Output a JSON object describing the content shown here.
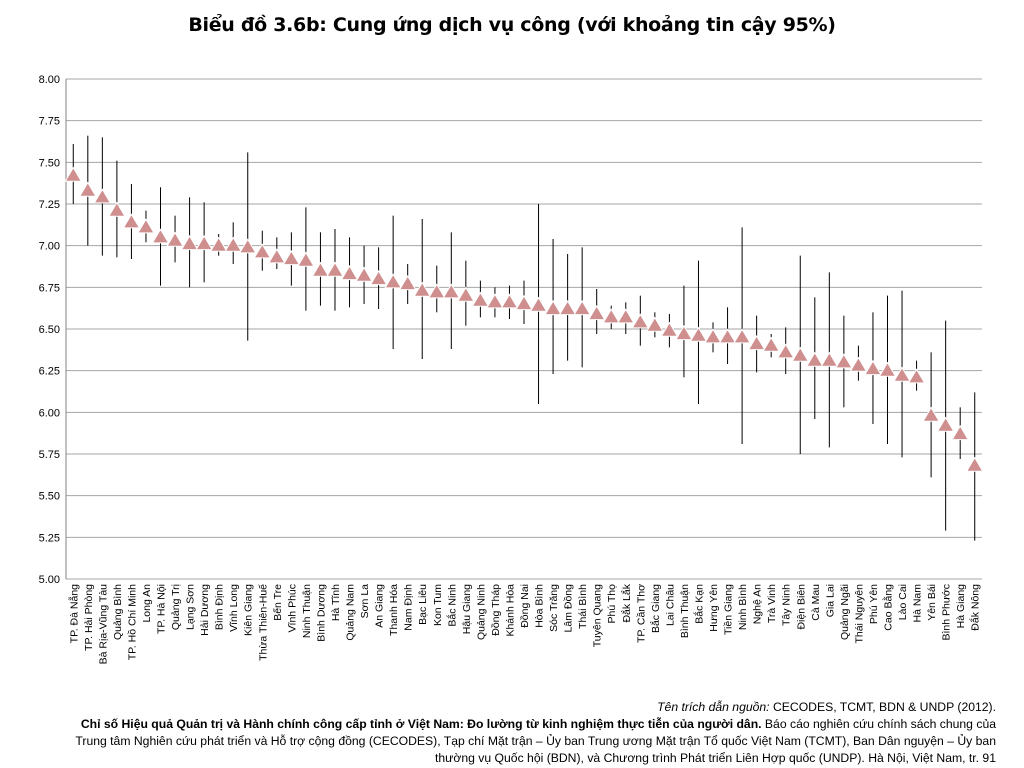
{
  "chart_data": {
    "type": "scatter",
    "title": "Biểu đồ 3.6b: Cung ứng dịch vụ công (với khoảng tin cậy 95%)",
    "xlabel": "",
    "ylabel": "",
    "ylim": [
      5.0,
      8.0
    ],
    "yticks": [
      "5.00",
      "5.25",
      "5.50",
      "5.75",
      "6.00",
      "6.25",
      "6.50",
      "6.75",
      "7.00",
      "7.25",
      "7.50",
      "7.75",
      "8.00"
    ],
    "grid": true,
    "marker": "triangle",
    "colors": {
      "marker": "#cf8f8f",
      "grid": "#a6a6a6",
      "error_bar": "#000000"
    },
    "categories": [
      "TP. Đà Nẵng",
      "TP. Hải Phòng",
      "Bà Rịa-Vũng Tàu",
      "Quảng Bình",
      "TP. Hồ Chí Minh",
      "Long An",
      "TP. Hà Nội",
      "Quảng Trị",
      "Lạng Sơn",
      "Hải Dương",
      "Bình Định",
      "Vĩnh Long",
      "Kiên Giang",
      "Thừa Thiên-Huế",
      "Bến Tre",
      "Vĩnh Phúc",
      "Ninh Thuận",
      "Bình Dương",
      "Hà Tĩnh",
      "Quảng Nam",
      "Sơn La",
      "An Giang",
      "Thanh Hóa",
      "Nam Định",
      "Bạc Liêu",
      "Kon Tum",
      "Bắc Ninh",
      "Hậu Giang",
      "Quảng Ninh",
      "Đồng Tháp",
      "Khánh Hòa",
      "Đồng Nai",
      "Hòa Bình",
      "Sóc Trăng",
      "Lâm Đồng",
      "Thái Bình",
      "Tuyên Quang",
      "Phú Thọ",
      "Đắk Lắk",
      "TP. Cần Thơ",
      "Bắc Giang",
      "Lai Châu",
      "Bình Thuận",
      "Bắc Kạn",
      "Hưng Yên",
      "Tiền Giang",
      "Ninh Bình",
      "Nghệ An",
      "Trà Vinh",
      "Tây Ninh",
      "Điện Biên",
      "Cà Mau",
      "Gia Lai",
      "Quảng Ngãi",
      "Thái Nguyên",
      "Phú Yên",
      "Cao Bằng",
      "Lào Cai",
      "Hà Nam",
      "Yên Bái",
      "Bình Phước",
      "Hà Giang",
      "Đắk Nông"
    ],
    "values": [
      7.42,
      7.33,
      7.29,
      7.21,
      7.14,
      7.11,
      7.05,
      7.03,
      7.01,
      7.01,
      7.0,
      7.0,
      6.99,
      6.96,
      6.93,
      6.92,
      6.91,
      6.85,
      6.85,
      6.83,
      6.82,
      6.8,
      6.78,
      6.77,
      6.73,
      6.72,
      6.72,
      6.7,
      6.67,
      6.66,
      6.66,
      6.65,
      6.64,
      6.62,
      6.62,
      6.62,
      6.59,
      6.57,
      6.57,
      6.54,
      6.52,
      6.49,
      6.47,
      6.46,
      6.45,
      6.45,
      6.45,
      6.41,
      6.4,
      6.36,
      6.34,
      6.31,
      6.31,
      6.3,
      6.28,
      6.26,
      6.25,
      6.22,
      6.21,
      5.98,
      5.92,
      5.87,
      5.68
    ],
    "ci_low": [
      7.25,
      7.0,
      6.94,
      6.93,
      6.92,
      7.02,
      6.76,
      6.9,
      6.75,
      6.78,
      6.94,
      6.89,
      6.43,
      6.85,
      6.86,
      6.76,
      6.61,
      6.64,
      6.61,
      6.63,
      6.65,
      6.62,
      6.38,
      6.65,
      6.32,
      6.6,
      6.38,
      6.52,
      6.57,
      6.57,
      6.56,
      6.53,
      6.05,
      6.23,
      6.31,
      6.27,
      6.47,
      6.5,
      6.47,
      6.4,
      6.45,
      6.39,
      6.21,
      6.05,
      6.36,
      6.29,
      5.81,
      6.24,
      6.33,
      6.23,
      5.75,
      5.96,
      5.79,
      6.03,
      6.19,
      5.93,
      5.81,
      5.73,
      6.13,
      5.61,
      5.29,
      5.72,
      5.23
    ],
    "ci_high": [
      7.61,
      7.66,
      7.65,
      7.51,
      7.37,
      7.21,
      7.35,
      7.18,
      7.29,
      7.26,
      7.07,
      7.14,
      7.56,
      7.09,
      7.05,
      7.08,
      7.23,
      7.08,
      7.1,
      7.05,
      7.0,
      6.99,
      7.18,
      6.89,
      7.16,
      6.88,
      7.08,
      6.91,
      6.79,
      6.75,
      6.76,
      6.79,
      7.25,
      7.04,
      6.95,
      6.99,
      6.74,
      6.64,
      6.66,
      6.7,
      6.6,
      6.59,
      6.76,
      6.91,
      6.54,
      6.63,
      7.11,
      6.58,
      6.47,
      6.51,
      6.94,
      6.69,
      6.84,
      6.58,
      6.4,
      6.6,
      6.7,
      6.73,
      6.31,
      6.36,
      6.55,
      6.03,
      6.12
    ]
  },
  "source": {
    "prefix": "Tên trích dẫn nguồn:",
    "authors": " CECODES, TCMT, BDN & UNDP (2012).",
    "title_bold": "Chỉ số Hiệu quả Quản trị và Hành chính công cấp tỉnh ở Việt Nam: Đo lường từ kinh nghiệm thực tiễn của người dân.",
    "line2_rest": " Báo cáo nghiên cứu chính sách chung của",
    "line3": "Trung tâm Nghiên cứu phát triển và Hỗ trợ cộng đồng (CECODES), Tạp chí Mặt trận – Ủy ban Trung ương Mặt trận Tổ quốc Việt Nam (TCMT), Ban Dân nguyện – Ủy ban",
    "line4": "thường vụ Quốc hội (BDN), và Chương trình Phát triển Liên Hợp quốc (UNDP). Hà Nội, Việt Nam, tr. 91"
  }
}
